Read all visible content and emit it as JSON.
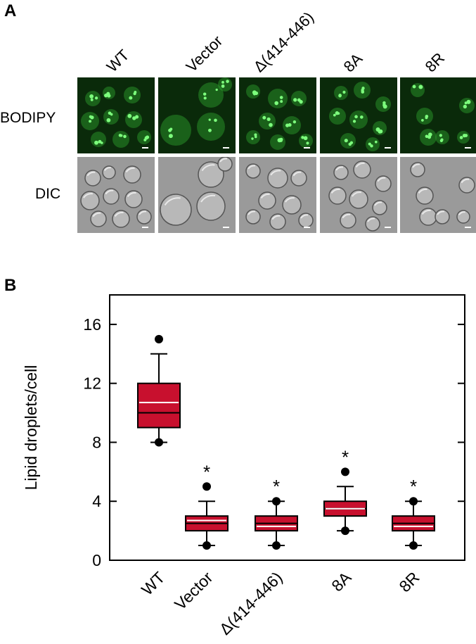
{
  "figure": {
    "panel_a_label": "A",
    "panel_b_label": "B",
    "row_labels": [
      "BODIPY",
      "DIC"
    ],
    "column_labels": [
      "WT",
      "Vector",
      "Δ(414-446)",
      "8A",
      "8R"
    ]
  },
  "colors": {
    "fluorescence_bg": "#0a2a0a",
    "fluorescence_cell": "#2fa32f",
    "dic_bg": "#9a9a9a",
    "box_fill": "#c8102e",
    "median_line": "#ffffff"
  },
  "chart_data": {
    "type": "box",
    "ylabel": "Lipid droplets/cell",
    "xlabel": "",
    "ylim": [
      0,
      18
    ],
    "yticks": [
      0,
      4,
      8,
      12,
      16
    ],
    "categories": [
      "WT",
      "Vector",
      "Δ(414-446)",
      "8A",
      "8R"
    ],
    "boxes": [
      {
        "q1": 9,
        "median": 10,
        "mean": 10.7,
        "q3": 12,
        "whisker_low": 8,
        "whisker_high": 14,
        "outliers": [
          15,
          8
        ],
        "significant": false
      },
      {
        "q1": 2,
        "median": 2.5,
        "mean": 2.7,
        "q3": 3,
        "whisker_low": 1,
        "whisker_high": 4,
        "outliers": [
          5,
          1
        ],
        "significant": true
      },
      {
        "q1": 2,
        "median": 2.5,
        "mean": 2.3,
        "q3": 3,
        "whisker_low": 1,
        "whisker_high": 4,
        "outliers": [
          4,
          1
        ],
        "significant": true
      },
      {
        "q1": 3,
        "median": 3.5,
        "mean": 3.5,
        "q3": 4,
        "whisker_low": 2,
        "whisker_high": 5,
        "outliers": [
          6,
          2
        ],
        "significant": true
      },
      {
        "q1": 2,
        "median": 2.5,
        "mean": 2.3,
        "q3": 3,
        "whisker_low": 1,
        "whisker_high": 4,
        "outliers": [
          4,
          1
        ],
        "significant": true
      }
    ],
    "significance_marker": "*"
  }
}
